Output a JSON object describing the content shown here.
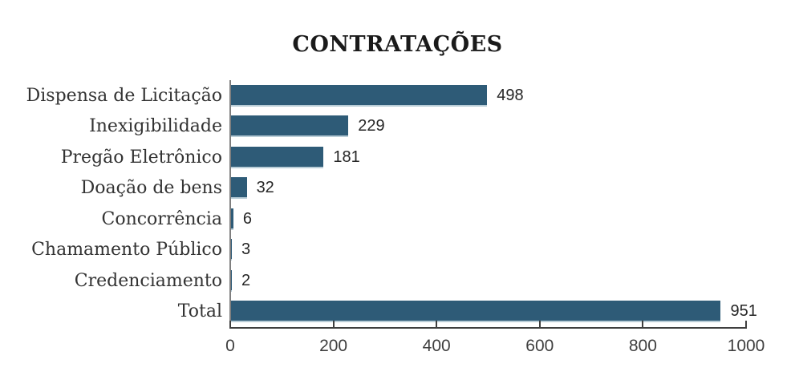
{
  "page": {
    "background": "#ffffff"
  },
  "chart_data": {
    "type": "bar",
    "orientation": "horizontal",
    "title": "CONTRATAÇÕES",
    "categories": [
      "Dispensa de Licitação",
      "Inexigibilidade",
      "Pregão Eletrônico",
      "Doação de bens",
      "Concorrência",
      "Chamamento Público",
      "Credenciamento",
      "Total"
    ],
    "values": [
      498,
      229,
      181,
      32,
      6,
      3,
      2,
      951
    ],
    "xlabel": "",
    "ylabel": "",
    "xlim": [
      0,
      1000
    ],
    "x_ticks": [
      0,
      200,
      400,
      600,
      800,
      1000
    ],
    "grid": false,
    "legend": false,
    "colors": {
      "bar": "#2E5B77",
      "bar_bottom_edge": "#B9CDD7",
      "vertical_axis": "#7F7F7F",
      "horizontal_axis": "#3F3F3F",
      "title_text": "#1A1A1A",
      "category_text": "#333333",
      "value_text": "#262626",
      "tick_text": "#3F3F3F"
    }
  }
}
